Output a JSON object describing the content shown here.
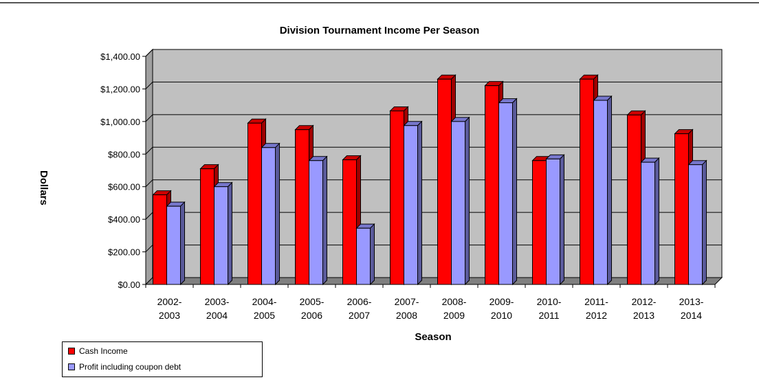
{
  "chart_data": {
    "type": "bar",
    "title": "Division Tournament Income Per Season",
    "xlabel": "Season",
    "ylabel": "Dollars",
    "ylim": [
      0,
      1400
    ],
    "yticks": [
      "$0.00",
      "$200.00",
      "$400.00",
      "$600.00",
      "$800.00",
      "$1,000.00",
      "$1,200.00",
      "$1,400.00"
    ],
    "grid": true,
    "legend_position": "bottom-left",
    "categories": [
      [
        "2002-",
        "2003"
      ],
      [
        "2003-",
        "2004"
      ],
      [
        "2004-",
        "2005"
      ],
      [
        "2005-",
        "2006"
      ],
      [
        "2006-",
        "2007"
      ],
      [
        "2007-",
        "2008"
      ],
      [
        "2008-",
        "2009"
      ],
      [
        "2009-",
        "2010"
      ],
      [
        "2010-",
        "2011"
      ],
      [
        "2011-",
        "2012"
      ],
      [
        "2012-",
        "2013"
      ],
      [
        "2013-",
        "2014"
      ]
    ],
    "series": [
      {
        "name": "Cash Income",
        "color": "#ff0000",
        "values": [
          550,
          710,
          990,
          950,
          765,
          1065,
          1260,
          1220,
          760,
          1260,
          1040,
          925
        ]
      },
      {
        "name": "Profit including coupon debt",
        "color": "#9999ff",
        "values": [
          480,
          600,
          840,
          760,
          345,
          975,
          1000,
          1115,
          770,
          1130,
          750,
          735
        ]
      }
    ]
  }
}
